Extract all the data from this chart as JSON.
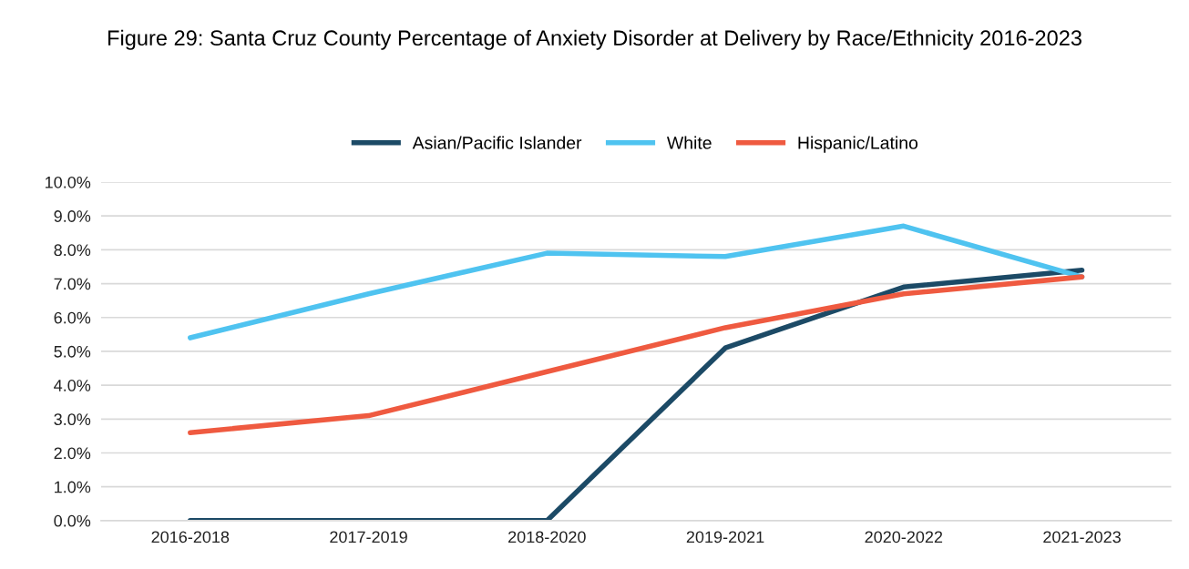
{
  "chart_data": {
    "type": "line",
    "title": "Figure 29: Santa Cruz County Percentage of Anxiety Disorder at Delivery by Race/Ethnicity 2016-2023",
    "categories": [
      "2016-2018",
      "2017-2019",
      "2018-2020",
      "2019-2021",
      "2020-2022",
      "2021-2023"
    ],
    "series": [
      {
        "name": "Asian/Pacific Islander",
        "color": "#1c4a66",
        "values": [
          0.0,
          0.0,
          0.0,
          5.1,
          6.9,
          7.4
        ]
      },
      {
        "name": "White",
        "color": "#4fc3f0",
        "values": [
          5.4,
          6.7,
          7.9,
          7.8,
          8.7,
          7.2
        ]
      },
      {
        "name": "Hispanic/Latino",
        "color": "#ef5a40",
        "values": [
          2.6,
          3.1,
          4.4,
          5.7,
          6.7,
          7.2
        ]
      }
    ],
    "ylim": [
      0,
      10
    ],
    "yticks": [
      {
        "value": 0,
        "label": "0.0%"
      },
      {
        "value": 1,
        "label": "1.0%"
      },
      {
        "value": 2,
        "label": "2.0%"
      },
      {
        "value": 3,
        "label": "3.0%"
      },
      {
        "value": 4,
        "label": "4.0%"
      },
      {
        "value": 5,
        "label": "5.0%"
      },
      {
        "value": 6,
        "label": "6.0%"
      },
      {
        "value": 7,
        "label": "7.0%"
      },
      {
        "value": 8,
        "label": "8.0%"
      },
      {
        "value": 9,
        "label": "9.0%"
      },
      {
        "value": 10,
        "label": "10.0%"
      }
    ],
    "grid": "y",
    "legend": "top",
    "marker": "none",
    "line_style": "solid"
  }
}
